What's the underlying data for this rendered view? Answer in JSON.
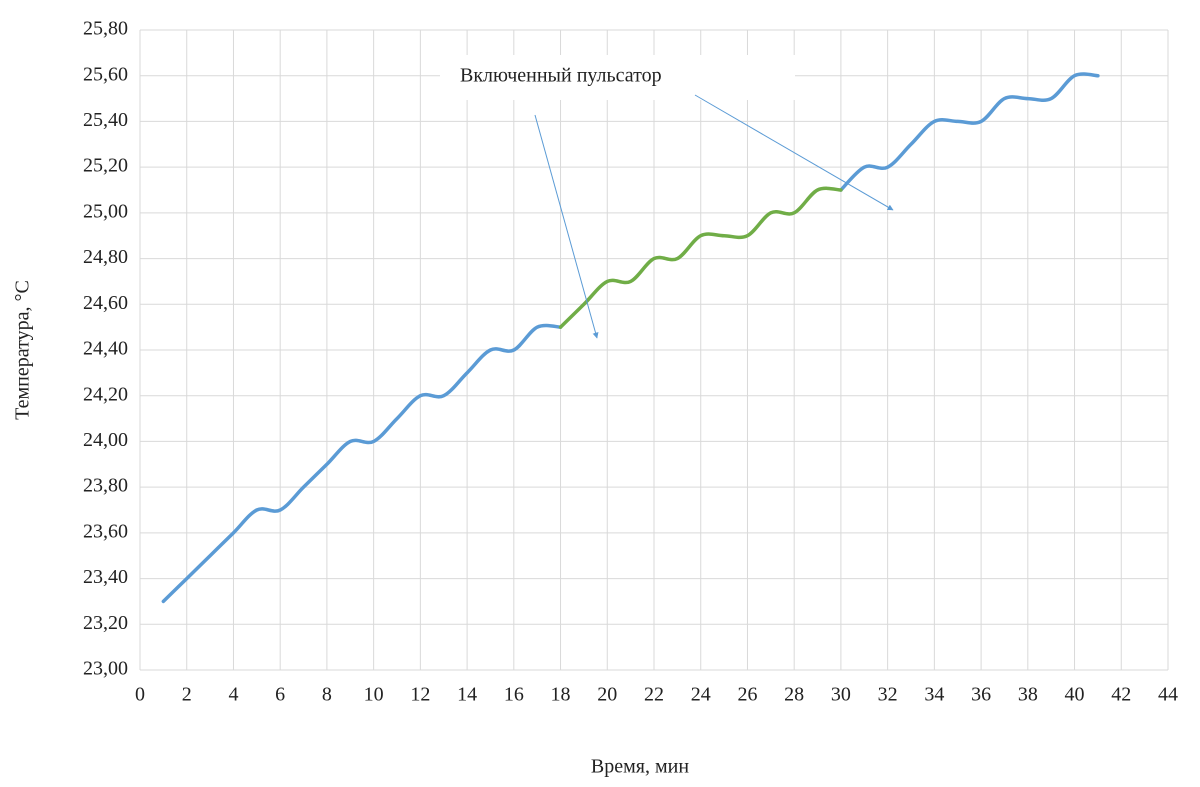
{
  "chart_data": {
    "type": "line",
    "xlabel": "Время, мин",
    "ylabel": "Температура, °С",
    "annotation": "Включенный пульсатор",
    "x": [
      1,
      2,
      3,
      4,
      5,
      6,
      7,
      8,
      9,
      10,
      11,
      12,
      13,
      14,
      15,
      16,
      17,
      18,
      19,
      20,
      21,
      22,
      23,
      24,
      25,
      26,
      27,
      28,
      29,
      30,
      31,
      32,
      33,
      34,
      35,
      36,
      37,
      38,
      39,
      40,
      41
    ],
    "series": [
      {
        "color": "#5b9bd5",
        "values": [
          23.3,
          23.4,
          23.5,
          23.6,
          23.7,
          23.7,
          23.8,
          23.9,
          24.0,
          24.0,
          24.1,
          24.2,
          24.2,
          24.3,
          24.4,
          24.4,
          24.5,
          24.5,
          null,
          null,
          null,
          null,
          null,
          null,
          null,
          null,
          null,
          null,
          null,
          25.1,
          25.2,
          25.2,
          25.3,
          25.4,
          25.4,
          25.4,
          25.5,
          25.5,
          25.5,
          25.6,
          25.6
        ]
      },
      {
        "color": "#70ad47",
        "values": [
          null,
          null,
          null,
          null,
          null,
          null,
          null,
          null,
          null,
          null,
          null,
          null,
          null,
          null,
          null,
          null,
          null,
          24.5,
          24.6,
          24.7,
          24.7,
          24.8,
          24.8,
          24.9,
          24.9,
          24.9,
          25.0,
          25.0,
          25.1,
          25.1,
          null,
          null,
          null,
          null,
          null,
          null,
          null,
          null,
          null,
          null,
          null
        ]
      }
    ],
    "xlim": [
      0,
      44
    ],
    "xticks": [
      0,
      2,
      4,
      6,
      8,
      10,
      12,
      14,
      16,
      18,
      20,
      22,
      24,
      26,
      28,
      30,
      32,
      34,
      36,
      38,
      40,
      42,
      44
    ],
    "ylim": [
      23.0,
      25.8
    ],
    "yticks": [
      {
        "value": 23.0,
        "label": "23,00"
      },
      {
        "value": 23.2,
        "label": "23,20"
      },
      {
        "value": 23.4,
        "label": "23,40"
      },
      {
        "value": 23.6,
        "label": "23,60"
      },
      {
        "value": 23.8,
        "label": "23,80"
      },
      {
        "value": 24.0,
        "label": "24,00"
      },
      {
        "value": 24.2,
        "label": "24,20"
      },
      {
        "value": 24.4,
        "label": "24,40"
      },
      {
        "value": 24.6,
        "label": "24,60"
      },
      {
        "value": 24.8,
        "label": "24,80"
      },
      {
        "value": 25.0,
        "label": "25,00"
      },
      {
        "value": 25.2,
        "label": "25,20"
      },
      {
        "value": 25.4,
        "label": "25,40"
      },
      {
        "value": 25.6,
        "label": "25,60"
      },
      {
        "value": 25.8,
        "label": "25,80"
      }
    ],
    "grid": true
  }
}
